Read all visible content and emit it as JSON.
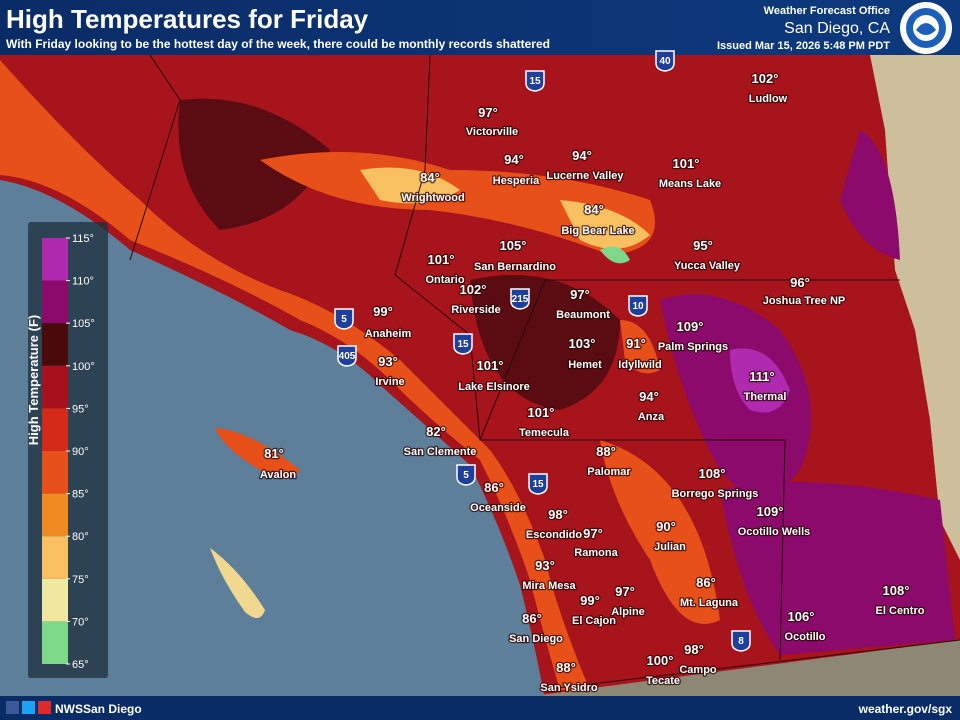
{
  "header": {
    "title": "High Temperatures for Friday",
    "subtitle": "With Friday looking to be the hottest day of the week, there could be monthly records shattered",
    "office": "Weather Forecast Office",
    "location": "San Diego, CA",
    "issued": "Issued Mar 15, 2026 5:48 PM PDT"
  },
  "legend": {
    "title": "High Temperature (F)",
    "ticks": [
      "115°",
      "110°",
      "105°",
      "100°",
      "95°",
      "90°",
      "85°",
      "80°",
      "75°",
      "70°",
      "65°"
    ]
  },
  "places": [
    {
      "temp": "97°",
      "name": "Victorville"
    },
    {
      "temp": "94°",
      "name": "Hesperia"
    },
    {
      "temp": "94°",
      "name": "Lucerne Valley"
    },
    {
      "temp": "101°",
      "name": "Means Lake"
    },
    {
      "temp": "102°",
      "name": "Ludlow"
    },
    {
      "temp": "84°",
      "name": "Wrightwood"
    },
    {
      "temp": "84°",
      "name": "Big Bear Lake"
    },
    {
      "temp": "105°",
      "name": "San Bernardino"
    },
    {
      "temp": "95°",
      "name": "Yucca Valley"
    },
    {
      "temp": "101°",
      "name": "Ontario"
    },
    {
      "temp": "102°",
      "name": "Riverside"
    },
    {
      "temp": "96°",
      "name": "Joshua Tree NP"
    },
    {
      "temp": "97°",
      "name": "Beaumont"
    },
    {
      "temp": "109°",
      "name": "Palm Springs"
    },
    {
      "temp": "99°",
      "name": "Anaheim"
    },
    {
      "temp": "103°",
      "name": "Hemet"
    },
    {
      "temp": "91°",
      "name": "Idyllwild"
    },
    {
      "temp": "93°",
      "name": "Irvine"
    },
    {
      "temp": "101°",
      "name": "Lake Elsinore"
    },
    {
      "temp": "111°",
      "name": "Thermal"
    },
    {
      "temp": "94°",
      "name": "Anza"
    },
    {
      "temp": "101°",
      "name": "Temecula"
    },
    {
      "temp": "82°",
      "name": "San Clemente"
    },
    {
      "temp": "81°",
      "name": "Avalon"
    },
    {
      "temp": "88°",
      "name": "Palomar"
    },
    {
      "temp": "108°",
      "name": "Borrego Springs"
    },
    {
      "temp": "86°",
      "name": "Oceanside"
    },
    {
      "temp": "109°",
      "name": "Ocotillo Wells"
    },
    {
      "temp": "98°",
      "name": "Escondido"
    },
    {
      "temp": "97°",
      "name": "Ramona"
    },
    {
      "temp": "90°",
      "name": "Julian"
    },
    {
      "temp": "93°",
      "name": "Mira Mesa"
    },
    {
      "temp": "86°",
      "name": "Mt. Laguna"
    },
    {
      "temp": "108°",
      "name": "El Centro"
    },
    {
      "temp": "97°",
      "name": "Alpine"
    },
    {
      "temp": "99°",
      "name": "El Cajon"
    },
    {
      "temp": "86°",
      "name": "San Diego"
    },
    {
      "temp": "106°",
      "name": "Ocotillo"
    },
    {
      "temp": "100°",
      "name": "Tecate"
    },
    {
      "temp": "98°",
      "name": "Campo"
    },
    {
      "temp": "88°",
      "name": "San Ysidro"
    }
  ],
  "highways": [
    "15",
    "40",
    "10",
    "5",
    "405",
    "215",
    "15",
    "5",
    "15",
    "8"
  ],
  "footer": {
    "social": "NWSSan Diego",
    "url": "weather.gov/sgx"
  }
}
